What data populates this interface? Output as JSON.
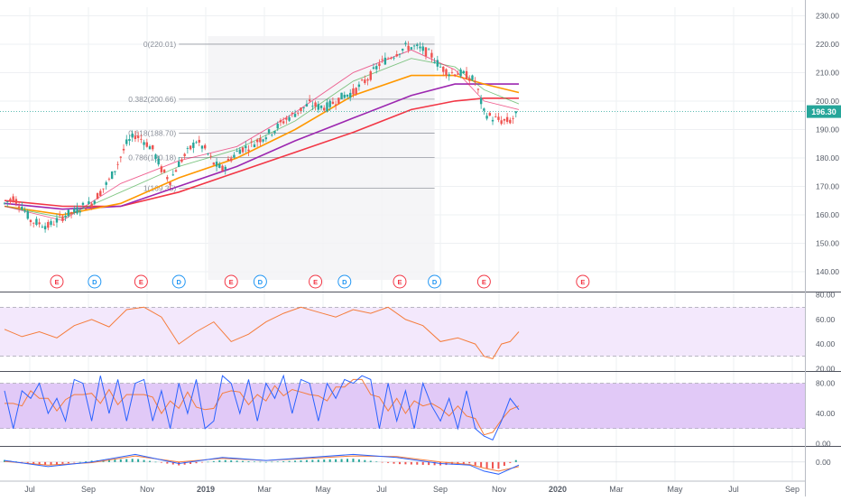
{
  "chart_data": {
    "type": "candlestick",
    "symbol_price": {
      "value": "196.30",
      "color": "#26a69a"
    },
    "main_pane": {
      "y_ticks": [
        "230.00",
        "220.00",
        "210.00",
        "200.00",
        "190.00",
        "180.00",
        "170.00",
        "160.00",
        "150.00",
        "140.00"
      ],
      "y_range": [
        133,
        233
      ],
      "fib_levels": [
        {
          "label": "0(220.01)",
          "price": 220.01
        },
        {
          "label": "0.382(200.66)",
          "price": 200.66
        },
        {
          "label": "0.618(188.70)",
          "price": 188.7
        },
        {
          "label": "0.786(180.18)",
          "price": 180.18
        },
        {
          "label": "1(169.35)",
          "price": 169.35
        }
      ],
      "close_path": [
        [
          0,
          164
        ],
        [
          3,
          166
        ],
        [
          6,
          163
        ],
        [
          9,
          158
        ],
        [
          12,
          157
        ],
        [
          15,
          156
        ],
        [
          18,
          158
        ],
        [
          21,
          160
        ],
        [
          24,
          161
        ],
        [
          27,
          163
        ],
        [
          30,
          164
        ],
        [
          33,
          168
        ],
        [
          36,
          172
        ],
        [
          39,
          178
        ],
        [
          42,
          185
        ],
        [
          45,
          188
        ],
        [
          48,
          186
        ],
        [
          51,
          183
        ],
        [
          54,
          176
        ],
        [
          57,
          172
        ],
        [
          60,
          178
        ],
        [
          63,
          182
        ],
        [
          66,
          186
        ],
        [
          69,
          183
        ],
        [
          72,
          178
        ],
        [
          75,
          176
        ],
        [
          78,
          180
        ],
        [
          81,
          183
        ],
        [
          84,
          184
        ],
        [
          87,
          186
        ],
        [
          90,
          188
        ],
        [
          93,
          190
        ],
        [
          96,
          193
        ],
        [
          99,
          195
        ],
        [
          102,
          197
        ],
        [
          105,
          199
        ],
        [
          108,
          198
        ],
        [
          111,
          198
        ],
        [
          114,
          200
        ],
        [
          117,
          202
        ],
        [
          120,
          203
        ],
        [
          123,
          206
        ],
        [
          126,
          209
        ],
        [
          129,
          213
        ],
        [
          132,
          215
        ],
        [
          135,
          217
        ],
        [
          138,
          219
        ],
        [
          141,
          219
        ],
        [
          144,
          218
        ],
        [
          147,
          216
        ],
        [
          150,
          212
        ],
        [
          153,
          210
        ],
        [
          156,
          210
        ],
        [
          159,
          209
        ],
        [
          162,
          207
        ],
        [
          165,
          196
        ],
        [
          168,
          194
        ],
        [
          171,
          193
        ],
        [
          174,
          193
        ],
        [
          177,
          196
        ]
      ],
      "moving_averages": [
        {
          "color": "#f23645",
          "points": [
            [
              0,
              165
            ],
            [
              20,
              163
            ],
            [
              40,
              163
            ],
            [
              60,
              168
            ],
            [
              80,
              175
            ],
            [
              100,
              182
            ],
            [
              120,
              189
            ],
            [
              140,
              197
            ],
            [
              155,
              200
            ],
            [
              165,
              201
            ],
            [
              177,
              201
            ]
          ]
        },
        {
          "color": "#9c27b0",
          "points": [
            [
              0,
              164
            ],
            [
              20,
              162
            ],
            [
              40,
              163
            ],
            [
              60,
              170
            ],
            [
              80,
              177
            ],
            [
              100,
              186
            ],
            [
              120,
              194
            ],
            [
              140,
              202
            ],
            [
              155,
              206
            ],
            [
              165,
              206
            ],
            [
              177,
              206
            ]
          ]
        },
        {
          "color": "#ff9800",
          "points": [
            [
              0,
              163
            ],
            [
              20,
              160
            ],
            [
              40,
              164
            ],
            [
              60,
              173
            ],
            [
              80,
              180
            ],
            [
              100,
              190
            ],
            [
              120,
              202
            ],
            [
              140,
              209
            ],
            [
              155,
              209
            ],
            [
              165,
              206
            ],
            [
              177,
              203
            ]
          ]
        },
        {
          "color": "#4caf50",
          "points": [
            [
              0,
              163
            ],
            [
              20,
              159
            ],
            [
              40,
              168
            ],
            [
              60,
              177
            ],
            [
              80,
              183
            ],
            [
              100,
              193
            ],
            [
              120,
              207
            ],
            [
              140,
              215
            ],
            [
              155,
              212
            ],
            [
              165,
              204
            ],
            [
              177,
              199
            ]
          ]
        },
        {
          "color": "#e91e63",
          "points": [
            [
              0,
              163
            ],
            [
              20,
              158
            ],
            [
              40,
              171
            ],
            [
              60,
              179
            ],
            [
              80,
              184
            ],
            [
              100,
              196
            ],
            [
              120,
              210
            ],
            [
              140,
              218
            ],
            [
              155,
              211
            ],
            [
              165,
              200
            ],
            [
              177,
              197
            ]
          ]
        }
      ],
      "events": [
        {
          "label": "E",
          "color": "#f23645",
          "x": 18
        },
        {
          "label": "D",
          "color": "#2196f3",
          "x": 31
        },
        {
          "label": "E",
          "color": "#f23645",
          "x": 47
        },
        {
          "label": "D",
          "color": "#2196f3",
          "x": 60
        },
        {
          "label": "E",
          "color": "#f23645",
          "x": 78
        },
        {
          "label": "D",
          "color": "#2196f3",
          "x": 88
        },
        {
          "label": "E",
          "color": "#f23645",
          "x": 107
        },
        {
          "label": "D",
          "color": "#2196f3",
          "x": 117
        },
        {
          "label": "E",
          "color": "#f23645",
          "x": 136
        },
        {
          "label": "D",
          "color": "#2196f3",
          "x": 148
        },
        {
          "label": "E",
          "color": "#f23645",
          "x": 165
        },
        {
          "label": "E",
          "color": "#f23645",
          "x": 199
        }
      ]
    },
    "rsi_pane": {
      "y_ticks": [
        "80.00",
        "60.00",
        "40.00",
        "20.00"
      ],
      "y_range": [
        18,
        82
      ],
      "band": [
        30,
        70
      ],
      "color": "#f57c3b",
      "points": [
        [
          0,
          52
        ],
        [
          6,
          46
        ],
        [
          12,
          50
        ],
        [
          18,
          45
        ],
        [
          24,
          55
        ],
        [
          30,
          60
        ],
        [
          36,
          54
        ],
        [
          42,
          68
        ],
        [
          48,
          70
        ],
        [
          54,
          62
        ],
        [
          60,
          40
        ],
        [
          66,
          50
        ],
        [
          72,
          58
        ],
        [
          78,
          42
        ],
        [
          84,
          48
        ],
        [
          90,
          58
        ],
        [
          96,
          65
        ],
        [
          102,
          70
        ],
        [
          108,
          66
        ],
        [
          114,
          62
        ],
        [
          120,
          68
        ],
        [
          126,
          65
        ],
        [
          132,
          70
        ],
        [
          138,
          60
        ],
        [
          144,
          55
        ],
        [
          150,
          42
        ],
        [
          156,
          45
        ],
        [
          162,
          40
        ],
        [
          165,
          30
        ],
        [
          168,
          28
        ],
        [
          171,
          40
        ],
        [
          174,
          42
        ],
        [
          177,
          50
        ]
      ]
    },
    "stoch_pane": {
      "y_ticks": [
        "80.00",
        "40.00",
        "0.00"
      ],
      "y_range": [
        -3,
        95
      ],
      "band": [
        20,
        80
      ],
      "k_color": "#2962ff",
      "d_color": "#f57c3b",
      "k_points": [
        [
          0,
          70
        ],
        [
          3,
          20
        ],
        [
          6,
          70
        ],
        [
          9,
          60
        ],
        [
          12,
          80
        ],
        [
          15,
          40
        ],
        [
          18,
          60
        ],
        [
          21,
          30
        ],
        [
          24,
          85
        ],
        [
          27,
          80
        ],
        [
          30,
          30
        ],
        [
          33,
          90
        ],
        [
          36,
          40
        ],
        [
          39,
          85
        ],
        [
          42,
          30
        ],
        [
          45,
          80
        ],
        [
          48,
          85
        ],
        [
          51,
          30
        ],
        [
          54,
          70
        ],
        [
          57,
          20
        ],
        [
          60,
          80
        ],
        [
          63,
          40
        ],
        [
          66,
          85
        ],
        [
          69,
          20
        ],
        [
          72,
          30
        ],
        [
          75,
          90
        ],
        [
          78,
          80
        ],
        [
          81,
          40
        ],
        [
          84,
          85
        ],
        [
          87,
          30
        ],
        [
          90,
          80
        ],
        [
          93,
          60
        ],
        [
          96,
          90
        ],
        [
          99,
          40
        ],
        [
          102,
          85
        ],
        [
          105,
          80
        ],
        [
          108,
          30
        ],
        [
          111,
          80
        ],
        [
          114,
          60
        ],
        [
          117,
          85
        ],
        [
          120,
          80
        ],
        [
          123,
          90
        ],
        [
          126,
          85
        ],
        [
          129,
          20
        ],
        [
          132,
          80
        ],
        [
          135,
          30
        ],
        [
          138,
          70
        ],
        [
          141,
          20
        ],
        [
          144,
          80
        ],
        [
          147,
          50
        ],
        [
          150,
          30
        ],
        [
          153,
          60
        ],
        [
          156,
          20
        ],
        [
          159,
          70
        ],
        [
          162,
          20
        ],
        [
          165,
          10
        ],
        [
          168,
          5
        ],
        [
          171,
          30
        ],
        [
          174,
          60
        ],
        [
          177,
          45
        ]
      ]
    },
    "macd_pane": {
      "y_ticks": [
        "0.00"
      ],
      "y_range": [
        -6,
        5
      ],
      "macd_color": "#2962ff",
      "signal_color": "#f57c3b",
      "macd_points": [
        [
          0,
          0.5
        ],
        [
          15,
          -1.5
        ],
        [
          30,
          0
        ],
        [
          45,
          2.5
        ],
        [
          60,
          -0.5
        ],
        [
          75,
          1.5
        ],
        [
          90,
          0.5
        ],
        [
          105,
          1.5
        ],
        [
          120,
          2.5
        ],
        [
          135,
          1.5
        ],
        [
          150,
          -0.5
        ],
        [
          160,
          -1
        ],
        [
          165,
          -3
        ],
        [
          170,
          -4
        ],
        [
          177,
          -1
        ]
      ],
      "signal_points": [
        [
          0,
          0.2
        ],
        [
          15,
          -1
        ],
        [
          30,
          -0.2
        ],
        [
          45,
          2
        ],
        [
          60,
          0
        ],
        [
          75,
          1.2
        ],
        [
          90,
          0.5
        ],
        [
          105,
          1.2
        ],
        [
          120,
          2
        ],
        [
          135,
          1.8
        ],
        [
          150,
          0
        ],
        [
          160,
          -0.8
        ],
        [
          165,
          -2
        ],
        [
          170,
          -3
        ],
        [
          177,
          -1.5
        ]
      ]
    },
    "time_axis": {
      "labels": [
        "Jul",
        "Sep",
        "Nov",
        "2019",
        "Mar",
        "May",
        "Jul",
        "Sep",
        "Nov",
        "2020",
        "Mar",
        "May",
        "Jul",
        "Sep"
      ]
    }
  }
}
